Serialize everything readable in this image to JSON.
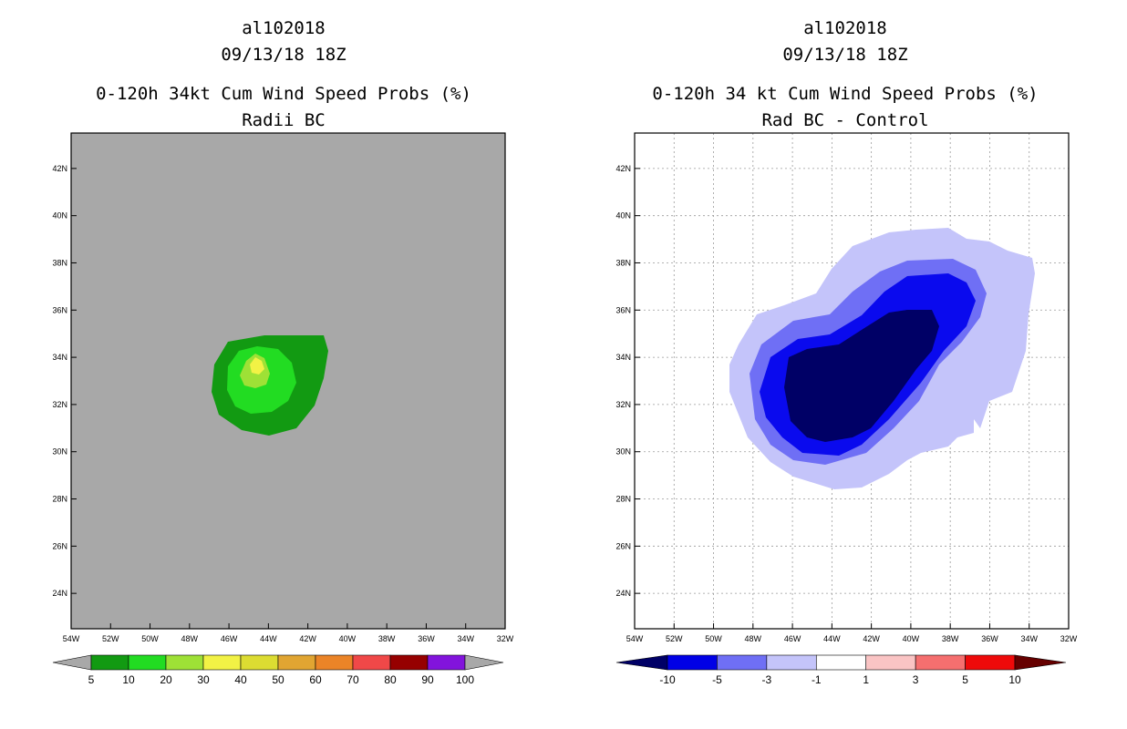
{
  "chart_data": [
    {
      "type": "contour-map",
      "storm_id": "al102018",
      "datetime": "09/13/18 18Z",
      "title": "0-120h 34kt Cum Wind Speed Probs (%)",
      "subtitle": "Radii BC",
      "lon_range": [
        -54,
        -32
      ],
      "lat_range": [
        22.5,
        43.5
      ],
      "x_ticks": [
        "54W",
        "52W",
        "50W",
        "48W",
        "46W",
        "44W",
        "42W",
        "40W",
        "38W",
        "36W",
        "34W",
        "32W"
      ],
      "y_ticks": [
        "24N",
        "26N",
        "28N",
        "30N",
        "32N",
        "34N",
        "36N",
        "38N",
        "40N",
        "42N"
      ],
      "grid": false,
      "background_color": "#a8a8a8",
      "contours": [
        {
          "level": 5,
          "color": "#129a12",
          "area": "broad oval around 33N 45W"
        },
        {
          "level": 10,
          "color": "#22dc22",
          "area": "inner oval near 33N 45W"
        },
        {
          "level": 20,
          "color": "#9ee136",
          "area": "core near 33.5N 45W"
        },
        {
          "level": 30,
          "color": "#f2f245",
          "area": "peak near 33.9N 44.8W"
        }
      ],
      "colorbar": {
        "levels": [
          "5",
          "10",
          "20",
          "30",
          "40",
          "50",
          "60",
          "70",
          "80",
          "90",
          "100"
        ],
        "colors": [
          "#129a12",
          "#22dc22",
          "#9ee136",
          "#f2f245",
          "#dcdc32",
          "#e1a532",
          "#eb8427",
          "#f04848",
          "#960000",
          "#8214dc"
        ],
        "under_color": "#a8a8a8",
        "over_color": "#a8a8a8"
      }
    },
    {
      "type": "contour-map",
      "storm_id": "al102018",
      "datetime": "09/13/18 18Z",
      "title": "0-120h 34 kt Cum Wind Speed Probs (%)",
      "subtitle": "Rad BC - Control",
      "lon_range": [
        -54,
        -32
      ],
      "lat_range": [
        22.5,
        43.5
      ],
      "x_ticks": [
        "54W",
        "52W",
        "50W",
        "48W",
        "46W",
        "44W",
        "42W",
        "40W",
        "38W",
        "36W",
        "34W",
        "32W"
      ],
      "y_ticks": [
        "24N",
        "26N",
        "28N",
        "30N",
        "32N",
        "34N",
        "36N",
        "38N",
        "40N",
        "42N"
      ],
      "grid": true,
      "background_color": "#ffffff",
      "contours": [
        {
          "level": -1,
          "color": "#c4c4fa",
          "area": "broad region 28.5N-39N, 50W-34W"
        },
        {
          "level": -3,
          "color": "#6f6ff5",
          "area": "band 29.5N-37.8N, 49W-37W"
        },
        {
          "level": -5,
          "color": "#0a0aee",
          "area": "region 30N-37.5N, 48W-38W"
        },
        {
          "level": -10,
          "color": "#000066",
          "area": "core 30.5N-36N, 47W-39W"
        }
      ],
      "colorbar": {
        "levels": [
          "-10",
          "-5",
          "-3",
          "-1",
          "1",
          "3",
          "5",
          "10"
        ],
        "colors": [
          "#0000e6",
          "#6f6ff5",
          "#c4c4fa",
          "#ffffff",
          "#fac4c4",
          "#f56f6f",
          "#ee0a0a"
        ],
        "under_color": "#000066",
        "over_color": "#660000"
      }
    }
  ]
}
